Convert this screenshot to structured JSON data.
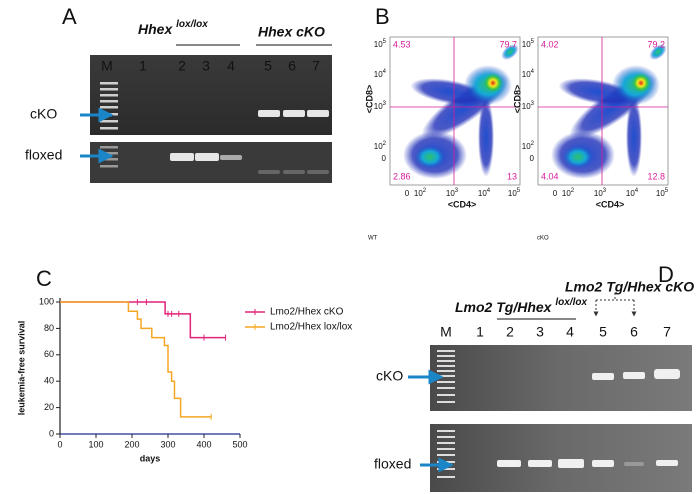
{
  "panel_a": {
    "label": "A",
    "groups": [
      {
        "name": "Hhex ",
        "superscript": "lox/lox"
      },
      {
        "name": "Hhex cKO"
      }
    ],
    "lanes": [
      "M",
      "1",
      "2",
      "3",
      "4",
      "5",
      "6",
      "7"
    ],
    "rows": [
      "cKO",
      "floxed"
    ]
  },
  "panel_b": {
    "label": "B",
    "x_label": "<CD4>",
    "y_label": "<CD8>",
    "tick_base": "10",
    "tick_exponents": [
      "2",
      "3",
      "4",
      "5"
    ],
    "tick_zero": "0",
    "plots": [
      {
        "caption": "WT",
        "quadrants": {
          "upper_left": 4.53,
          "upper_right": 79.7,
          "lower_left": 2.86,
          "lower_right": 13
        }
      },
      {
        "caption": "cKO",
        "quadrants": {
          "upper_left": 4.02,
          "upper_right": 79.2,
          "lower_left": 4.04,
          "lower_right": 12.8
        }
      }
    ]
  },
  "panel_c": {
    "label": "C",
    "chart_data": {
      "type": "step",
      "y_label": "leukemia-free survival",
      "x_label": "days",
      "xlim": [
        0,
        500
      ],
      "xticks": [
        0,
        100,
        200,
        300,
        400,
        500
      ],
      "ylim": [
        0,
        100
      ],
      "yticks": [
        0,
        20,
        40,
        60,
        80,
        100
      ],
      "series": [
        {
          "name": "Lmo2/Hhex cKO",
          "color": "#e0237b",
          "x": [
            0,
            292,
            362,
            460
          ],
          "values": [
            100,
            91,
            73,
            73
          ],
          "censored_x": [
            215,
            240,
            300,
            310,
            330,
            400,
            460
          ],
          "censored_values": [
            100,
            100,
            91,
            91,
            91,
            73,
            73
          ]
        },
        {
          "name": "Lmo2/Hhex lox/lox",
          "color": "#f5a623",
          "x": [
            0,
            190,
            215,
            225,
            255,
            290,
            300,
            310,
            318,
            335,
            420
          ],
          "values": [
            100,
            93,
            87,
            80,
            73,
            67,
            47,
            40,
            27,
            13,
            13
          ],
          "censored_x": [
            420
          ],
          "censored_values": [
            13
          ]
        }
      ]
    }
  },
  "panel_d": {
    "label": "D",
    "groups": [
      {
        "name": "Lmo2 Tg/Hhex ",
        "superscript": "lox/lox"
      },
      {
        "name": "Lmo2 Tg/Hhex cKO"
      }
    ],
    "lanes": [
      "M",
      "1",
      "2",
      "3",
      "4",
      "5",
      "6",
      "7"
    ],
    "rows": [
      "cKO",
      "floxed"
    ]
  }
}
